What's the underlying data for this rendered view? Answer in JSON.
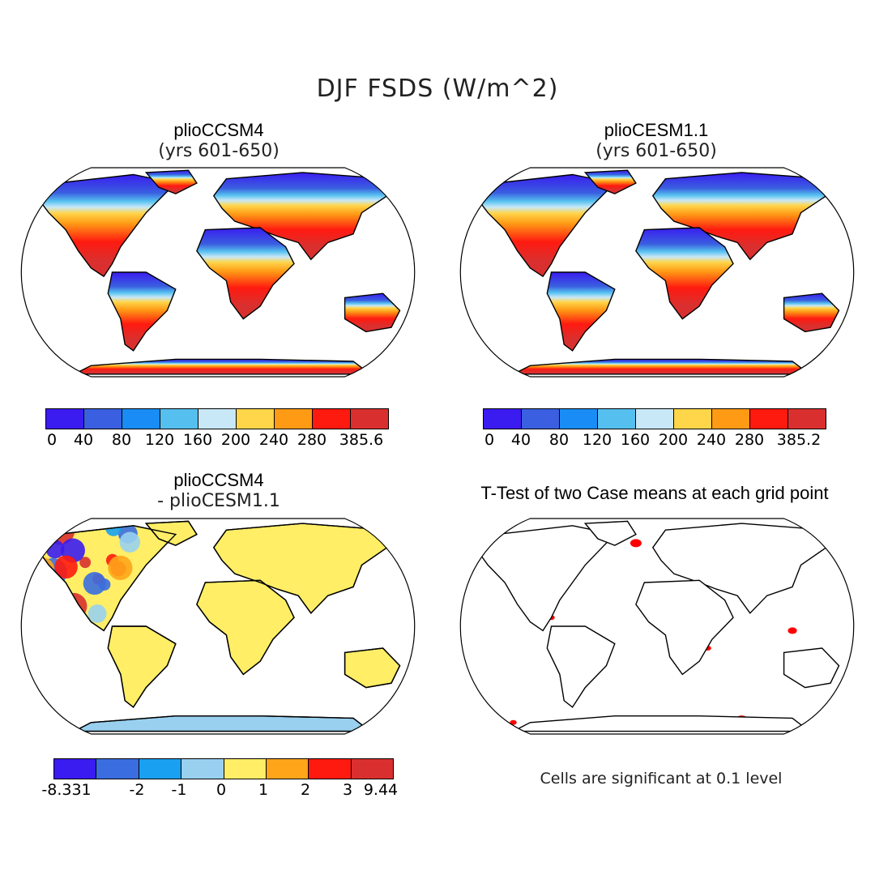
{
  "figure": {
    "title": "DJF FSDS (W/m^2)"
  },
  "panels": [
    {
      "id": "pliocc",
      "title": "plioCCSM4",
      "subtitle": "(yrs 601-650)",
      "colors": [
        "#3a1cf0",
        "#3a5fe0",
        "#1a8cf5",
        "#55c0ef",
        "#c8e8f8",
        "#ffd54a",
        "#ff9a15",
        "#ff1a10",
        "#d9302f"
      ],
      "tick_labels": [
        "0",
        "40",
        "80",
        "120",
        "160",
        "200",
        "240",
        "280",
        "385.6"
      ]
    },
    {
      "id": "pliocesm",
      "title": "plioCESM1.1",
      "subtitle": "(yrs 601-650)",
      "colors": [
        "#3a1cf0",
        "#3a5fe0",
        "#1a8cf5",
        "#55c0ef",
        "#c8e8f8",
        "#ffd54a",
        "#ff9a15",
        "#ff1a10",
        "#d9302f"
      ],
      "tick_labels": [
        "0",
        "40",
        "80",
        "120",
        "160",
        "200",
        "240",
        "280",
        "385.2"
      ]
    },
    {
      "id": "diff",
      "title": "plioCCSM4",
      "subtitle": "- plioCESM1.1",
      "colors": [
        "#3a1cf0",
        "#3a6ee0",
        "#1aa0f0",
        "#99d0ef",
        "#ffee66",
        "#ffa51a",
        "#ff1a10",
        "#d9302f"
      ],
      "tick_labels": [
        "-8.331",
        "-2",
        "-1",
        "0",
        "1",
        "2",
        "3",
        "9.44"
      ]
    },
    {
      "id": "ttest",
      "title": "T-Test of two Case means at each grid point",
      "note": "Cells are significant at 0.1 level",
      "significant_color": "#ff0000"
    }
  ]
}
